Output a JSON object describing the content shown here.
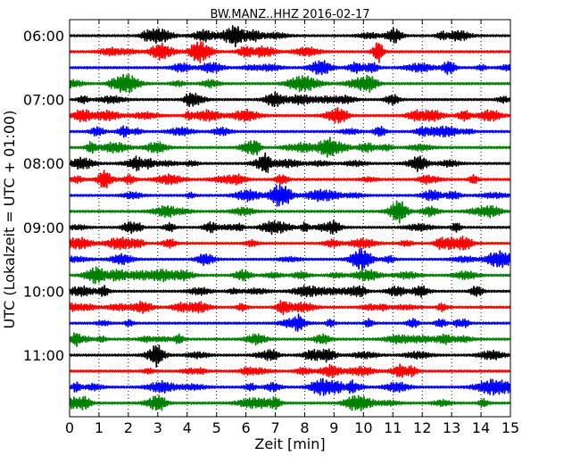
{
  "chart_data": {
    "type": "line",
    "title": "BW.MANZ..HHZ 2016-02-17",
    "xlabel": "Zeit  [min]",
    "ylabel": "UTC (Lokalzeit = UTC + 01:00)",
    "xlim": [
      0,
      15
    ],
    "x_ticks": [
      "0",
      "1",
      "2",
      "3",
      "4",
      "5",
      "6",
      "7",
      "8",
      "9",
      "10",
      "11",
      "12",
      "13",
      "14",
      "15"
    ],
    "y_ticks": [
      "06:00",
      "07:00",
      "08:00",
      "09:00",
      "10:00",
      "11:00"
    ],
    "trace_interval_min": 15,
    "grid": "vertical-dotted",
    "series_colors": [
      "#000000",
      "#ff0000",
      "#0000ff",
      "#008000"
    ],
    "trace_start_times": [
      "06:00",
      "06:15",
      "06:30",
      "06:45",
      "07:00",
      "07:15",
      "07:30",
      "07:45",
      "08:00",
      "08:15",
      "08:30",
      "08:45",
      "09:00",
      "09:15",
      "09:30",
      "09:45",
      "10:00",
      "10:15",
      "10:30",
      "10:45",
      "11:00",
      "11:15",
      "11:30",
      "11:45"
    ]
  }
}
